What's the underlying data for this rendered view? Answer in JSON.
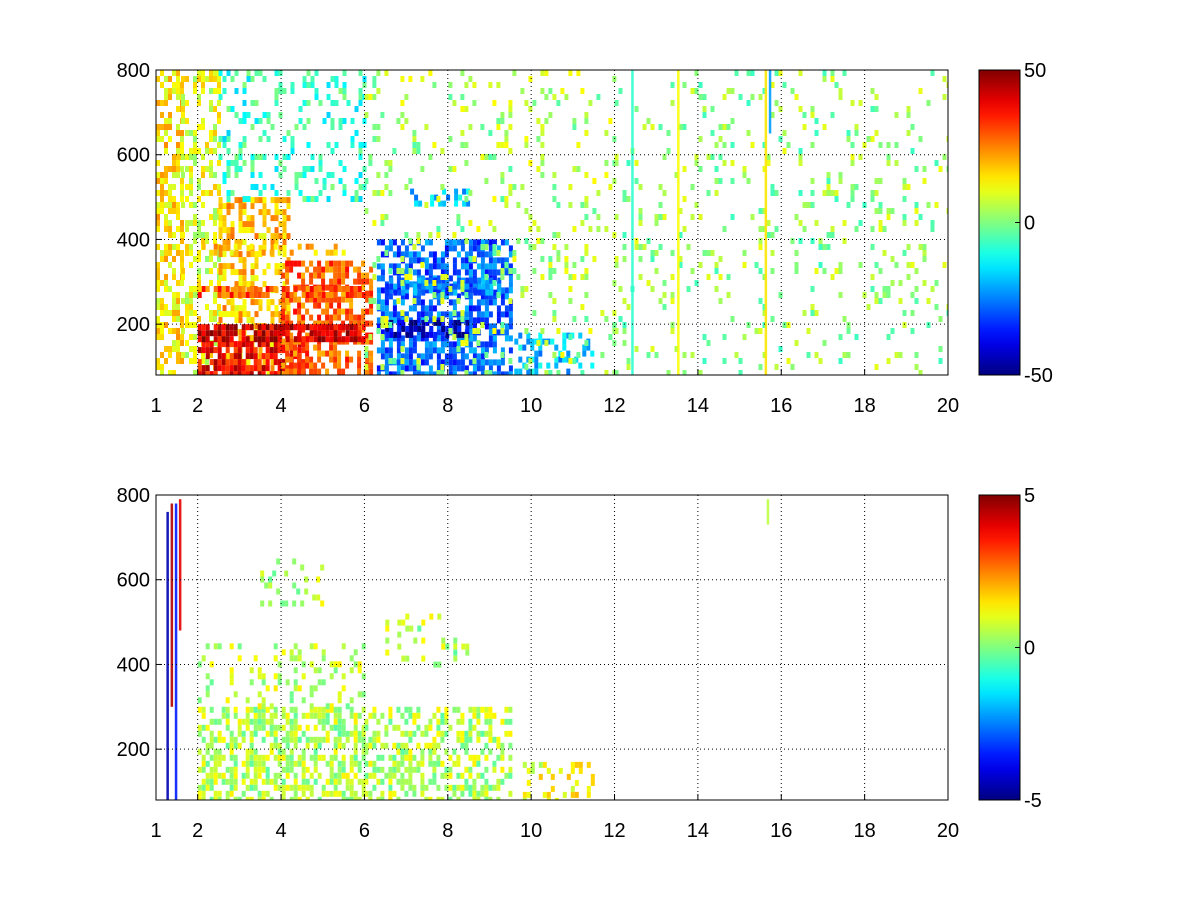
{
  "chart_data": [
    {
      "type": "heatmap",
      "title": "",
      "xlabel": "",
      "ylabel": "",
      "xlim": [
        1,
        20
      ],
      "ylim": [
        80,
        800
      ],
      "x_ticks": [
        1,
        2,
        4,
        6,
        8,
        10,
        12,
        14,
        16,
        18,
        20
      ],
      "y_ticks": [
        200,
        400,
        600,
        800
      ],
      "grid": true,
      "colormap": "jet",
      "clim": [
        -50,
        50
      ],
      "colorbar_ticks": [
        50,
        0,
        -50
      ],
      "regions": [
        {
          "x": [
            1.0,
            1.6
          ],
          "y": [
            80,
            800
          ],
          "value": 15,
          "density": 0.55
        },
        {
          "x": [
            1.6,
            2.5
          ],
          "y": [
            80,
            800
          ],
          "value": 10,
          "density": 0.4
        },
        {
          "x": [
            2.5,
            4.2
          ],
          "y": [
            80,
            500
          ],
          "value": 18,
          "density": 0.5
        },
        {
          "x": [
            2.5,
            6.0
          ],
          "y": [
            500,
            800
          ],
          "value": -8,
          "density": 0.25
        },
        {
          "x": [
            2.0,
            4.5
          ],
          "y": [
            80,
            160
          ],
          "value": 38,
          "density": 0.75
        },
        {
          "x": [
            4.0,
            6.2
          ],
          "y": [
            80,
            350
          ],
          "value": 28,
          "density": 0.6
        },
        {
          "x": [
            2.0,
            6.0
          ],
          "y": [
            165,
            200
          ],
          "value": 42,
          "density": 0.8
        },
        {
          "x": [
            2.0,
            6.0
          ],
          "y": [
            265,
            290
          ],
          "value": 30,
          "density": 0.65
        },
        {
          "x": [
            2.0,
            5.5
          ],
          "y": [
            370,
            390
          ],
          "value": 18,
          "density": 0.4
        },
        {
          "x": [
            6.3,
            9.5
          ],
          "y": [
            80,
            400
          ],
          "value": -28,
          "density": 0.65
        },
        {
          "x": [
            6.5,
            8.5
          ],
          "y": [
            170,
            210
          ],
          "value": -42,
          "density": 0.75
        },
        {
          "x": [
            6.5,
            9.2
          ],
          "y": [
            280,
            310
          ],
          "value": -26,
          "density": 0.7
        },
        {
          "x": [
            7.0,
            8.5
          ],
          "y": [
            480,
            520
          ],
          "value": -18,
          "density": 0.5
        },
        {
          "x": [
            9.5,
            11.5
          ],
          "y": [
            80,
            180
          ],
          "value": -18,
          "density": 0.35
        },
        {
          "x": [
            6.0,
            12.0
          ],
          "y": [
            80,
            800
          ],
          "value": 4,
          "density": 0.12
        },
        {
          "x": [
            12.0,
            20.0
          ],
          "y": [
            80,
            800
          ],
          "value": 2,
          "density": 0.1
        }
      ],
      "streaks": [
        {
          "x": 12.4,
          "y": [
            80,
            800
          ],
          "value": -8
        },
        {
          "x": 13.5,
          "y": [
            80,
            800
          ],
          "value": 12
        },
        {
          "x": 15.6,
          "y": [
            80,
            800
          ],
          "value": 15
        },
        {
          "x": 15.7,
          "y": [
            650,
            800
          ],
          "value": -22
        }
      ]
    },
    {
      "type": "heatmap",
      "title": "",
      "xlabel": "",
      "ylabel": "",
      "xlim": [
        1,
        20
      ],
      "ylim": [
        80,
        800
      ],
      "x_ticks": [
        1,
        2,
        4,
        6,
        8,
        10,
        12,
        14,
        16,
        18,
        20
      ],
      "y_ticks": [
        200,
        400,
        600,
        800
      ],
      "grid": true,
      "colormap": "jet",
      "clim": [
        -5,
        5
      ],
      "colorbar_ticks": [
        5,
        0,
        -5
      ],
      "regions": [
        {
          "x": [
            2.0,
            6.0
          ],
          "y": [
            80,
            300
          ],
          "value": 0.5,
          "density": 0.55
        },
        {
          "x": [
            6.0,
            9.5
          ],
          "y": [
            80,
            300
          ],
          "value": 0.5,
          "density": 0.45
        },
        {
          "x": [
            2.0,
            6.0
          ],
          "y": [
            300,
            450
          ],
          "value": 0.6,
          "density": 0.18
        },
        {
          "x": [
            3.5,
            5.0
          ],
          "y": [
            550,
            650
          ],
          "value": 0.6,
          "density": 0.25
        },
        {
          "x": [
            6.5,
            8.5
          ],
          "y": [
            400,
            520
          ],
          "value": 0.5,
          "density": 0.15
        },
        {
          "x": [
            9.8,
            11.5
          ],
          "y": [
            80,
            170
          ],
          "value": 1.2,
          "density": 0.25
        }
      ],
      "streaks": [
        {
          "x": 1.25,
          "y": [
            80,
            760
          ],
          "value": -4.5
        },
        {
          "x": 1.35,
          "y": [
            300,
            780
          ],
          "value": 4.5
        },
        {
          "x": 1.45,
          "y": [
            80,
            780
          ],
          "value": -3.5
        },
        {
          "x": 1.55,
          "y": [
            480,
            790
          ],
          "value": 4.0
        },
        {
          "x": 15.65,
          "y": [
            730,
            790
          ],
          "value": 0.6
        }
      ]
    }
  ]
}
